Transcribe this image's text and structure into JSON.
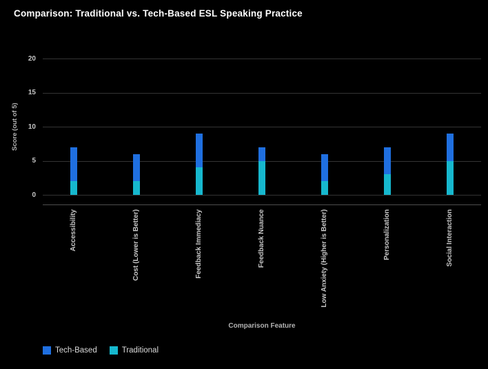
{
  "title": "Comparison: Traditional vs. Tech-Based ESL Speaking Practice",
  "colors": {
    "background": "#000000",
    "title_text": "#ffffff",
    "axis_text": "#c6c6c6",
    "grid": "#343434",
    "tech_based": "#1f6fe0",
    "traditional": "#16b8ce"
  },
  "chart_data": {
    "type": "bar",
    "stacked": true,
    "title": "Comparison: Traditional vs. Tech-Based ESL Speaking Practice",
    "categories": [
      "Accessibility",
      "Cost (Lower is Better)",
      "Feedback Immediacy",
      "Feedback Nuance",
      "Low Anxiety (Higher is Better)",
      "Personalization",
      "Social Interaction"
    ],
    "series": [
      {
        "name": "Traditional",
        "color": "#16b8ce",
        "values": [
          2,
          2,
          4,
          5,
          2,
          3,
          5
        ]
      },
      {
        "name": "Tech-Based",
        "color": "#1f6fe0",
        "values": [
          5,
          4,
          5,
          2,
          4,
          4,
          4
        ]
      }
    ],
    "totals": [
      7,
      6,
      9,
      7,
      6,
      7,
      9
    ],
    "xlabel": "Comparison Feature",
    "ylabel": "Score (out of 5)",
    "ylim": [
      0,
      20
    ],
    "yticks": [
      0,
      5,
      10,
      15,
      20
    ],
    "grid": true,
    "legend": {
      "position": "bottom-left",
      "items": [
        "Tech-Based",
        "Traditional"
      ]
    }
  }
}
